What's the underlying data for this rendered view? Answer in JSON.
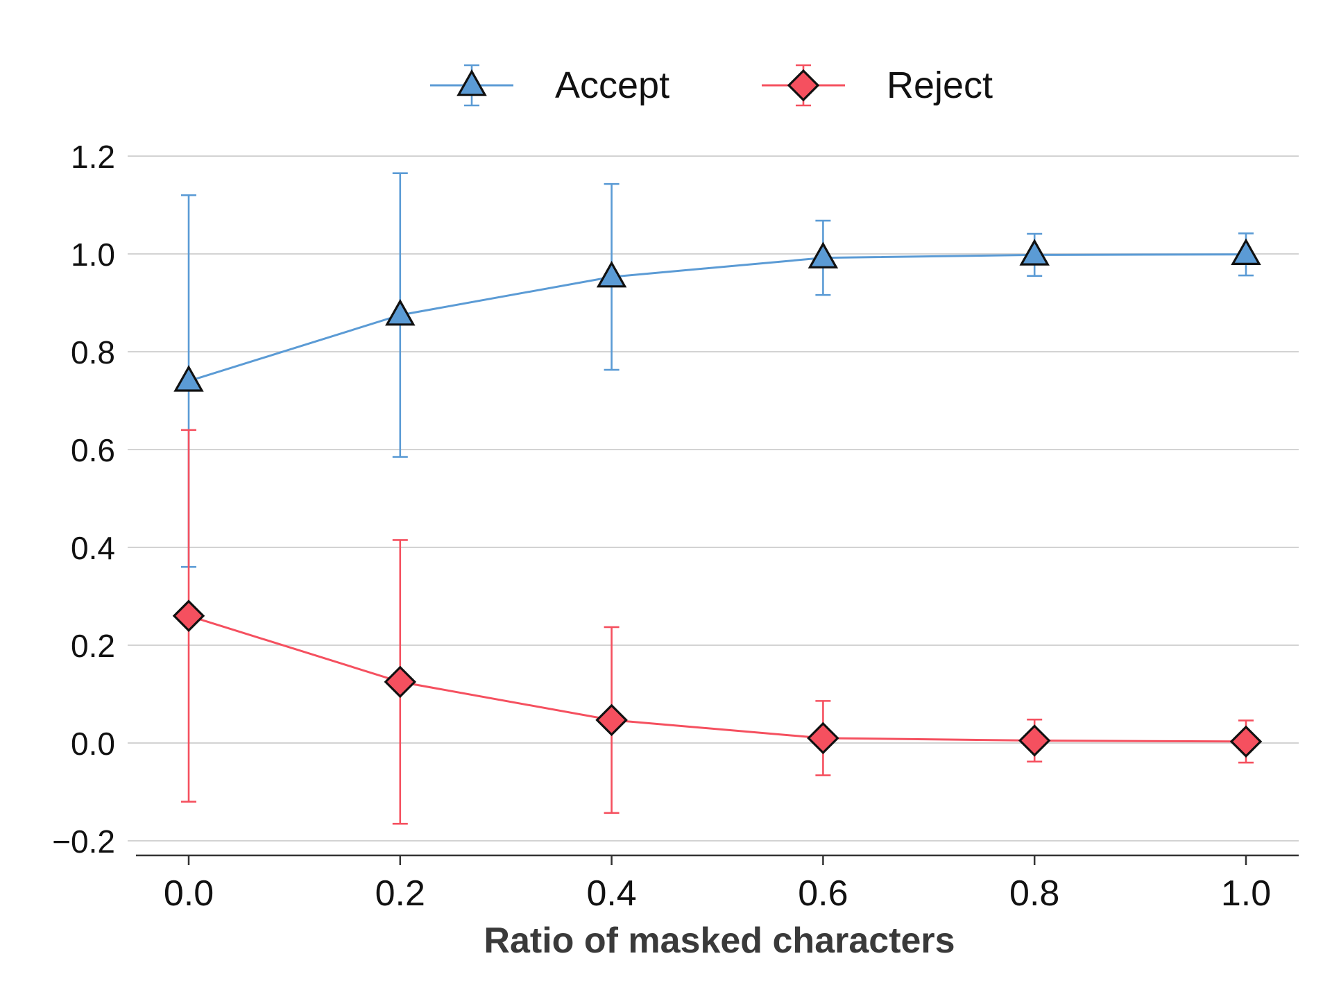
{
  "chart_data": {
    "type": "line",
    "title": "",
    "xlabel": "Ratio of masked characters",
    "ylabel": "",
    "x": [
      0.0,
      0.2,
      0.4,
      0.6,
      0.8,
      1.0
    ],
    "x_tick_labels": [
      "0.0",
      "0.2",
      "0.4",
      "0.6",
      "0.8",
      "1.0"
    ],
    "y_ticks": [
      -0.2,
      0.0,
      0.2,
      0.4,
      0.6,
      0.8,
      1.0,
      1.2
    ],
    "y_tick_labels": [
      "−0.2",
      "0.0",
      "0.2",
      "0.4",
      "0.6",
      "0.8",
      "1.0",
      "1.2"
    ],
    "xlim": [
      -0.05,
      1.05
    ],
    "ylim": [
      -0.23,
      1.25
    ],
    "grid": "horizontal",
    "legend_position": "top-center",
    "series": [
      {
        "name": "Accept",
        "marker": "triangle",
        "color": "#5b9bd5",
        "values": [
          0.74,
          0.875,
          0.953,
          0.992,
          0.998,
          0.999
        ],
        "error": [
          0.38,
          0.29,
          0.19,
          0.076,
          0.043,
          0.043
        ]
      },
      {
        "name": "Reject",
        "marker": "diamond",
        "color": "#f5505f",
        "values": [
          0.26,
          0.125,
          0.047,
          0.01,
          0.005,
          0.003
        ],
        "error": [
          0.38,
          0.29,
          0.19,
          0.076,
          0.043,
          0.043
        ]
      }
    ]
  }
}
